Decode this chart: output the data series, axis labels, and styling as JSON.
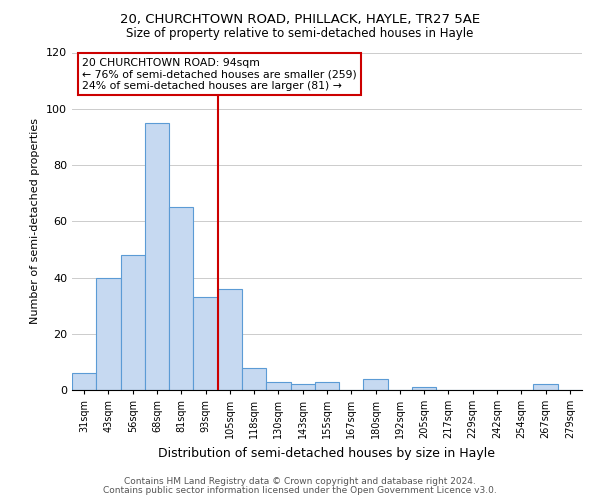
{
  "title": "20, CHURCHTOWN ROAD, PHILLACK, HAYLE, TR27 5AE",
  "subtitle": "Size of property relative to semi-detached houses in Hayle",
  "xlabel": "Distribution of semi-detached houses by size in Hayle",
  "ylabel": "Number of semi-detached properties",
  "bar_labels": [
    "31sqm",
    "43sqm",
    "56sqm",
    "68sqm",
    "81sqm",
    "93sqm",
    "105sqm",
    "118sqm",
    "130sqm",
    "143sqm",
    "155sqm",
    "167sqm",
    "180sqm",
    "192sqm",
    "205sqm",
    "217sqm",
    "229sqm",
    "242sqm",
    "254sqm",
    "267sqm",
    "279sqm"
  ],
  "bar_values": [
    6,
    40,
    48,
    95,
    65,
    33,
    36,
    8,
    3,
    2,
    3,
    0,
    4,
    0,
    1,
    0,
    0,
    0,
    0,
    2,
    0
  ],
  "bar_color": "#c6d9f1",
  "bar_edge_color": "#5b9bd5",
  "ylim": [
    0,
    120
  ],
  "yticks": [
    0,
    20,
    40,
    60,
    80,
    100,
    120
  ],
  "property_line_index": 5,
  "property_label": "20 CHURCHTOWN ROAD: 94sqm",
  "annotation_line1": "← 76% of semi-detached houses are smaller (259)",
  "annotation_line2": "24% of semi-detached houses are larger (81) →",
  "annotation_box_color": "#ffffff",
  "annotation_box_edge": "#cc0000",
  "line_color": "#cc0000",
  "footer1": "Contains HM Land Registry data © Crown copyright and database right 2024.",
  "footer2": "Contains public sector information licensed under the Open Government Licence v3.0.",
  "background_color": "#ffffff",
  "grid_color": "#cccccc"
}
